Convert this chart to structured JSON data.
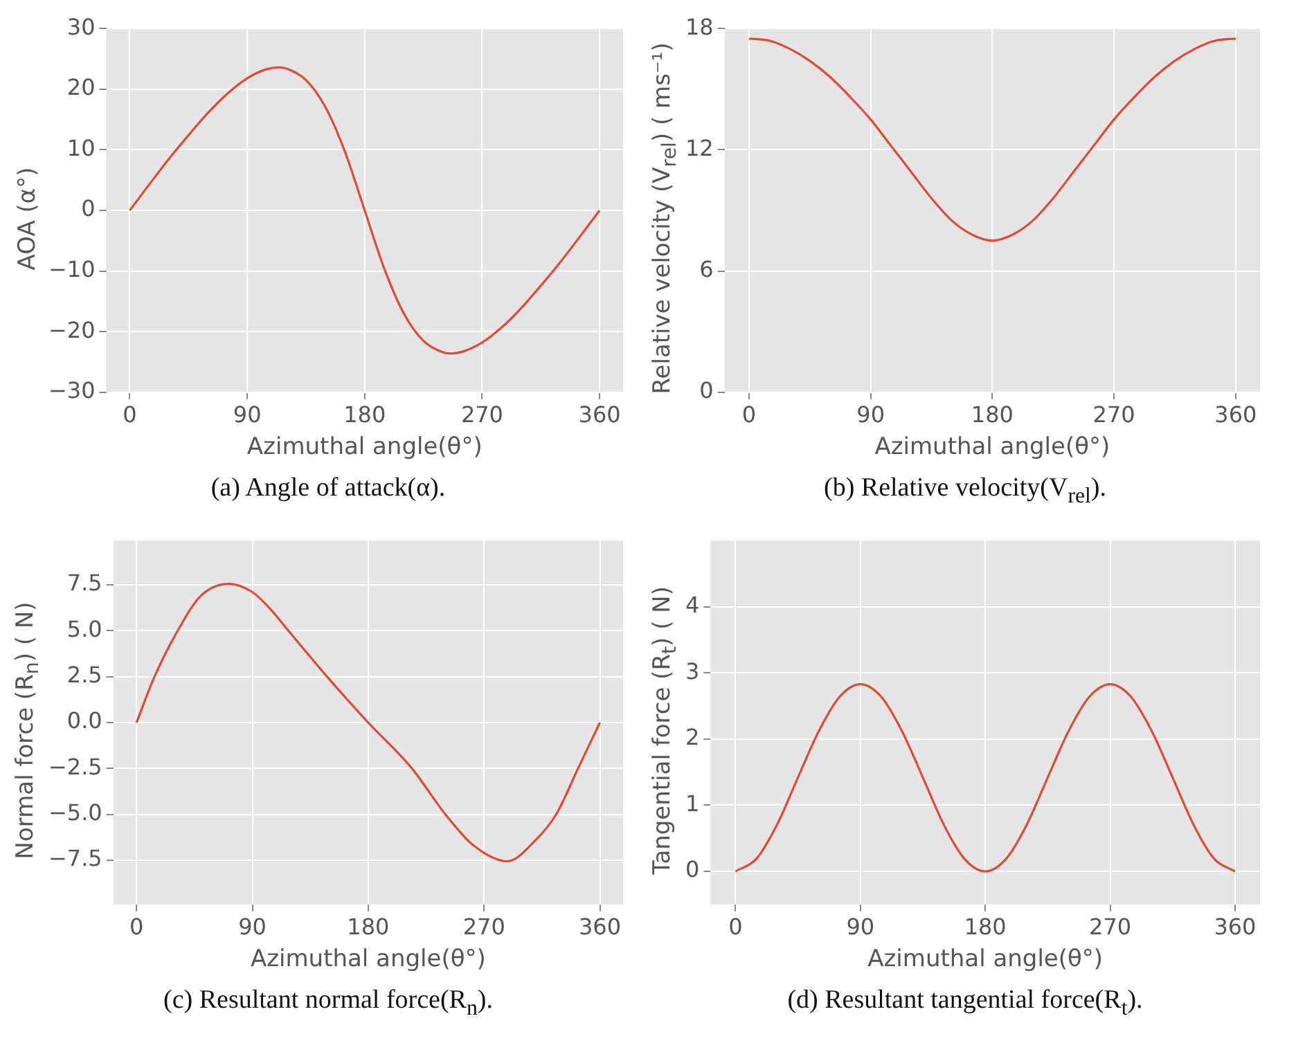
{
  "chart_data": [
    {
      "type": "line",
      "title": "(a) Angle of attack(α).",
      "xlabel": "Azimuthal angle(θ°)",
      "ylabel": "AOA (α°)",
      "xlim": [
        -18,
        378
      ],
      "xticks": [
        0,
        90,
        180,
        270,
        360
      ],
      "ylim": [
        -30,
        30
      ],
      "yticks": [
        -30,
        -20,
        -10,
        0,
        10,
        20,
        30
      ],
      "grid": true,
      "marker": "none",
      "line_style": "solid",
      "series": [
        {
          "color": "#e24a33",
          "x": [
            0,
            15,
            30,
            45,
            60,
            75,
            90,
            105,
            114,
            120,
            135,
            150,
            165,
            180,
            195,
            210,
            225,
            240,
            246,
            255,
            270,
            285,
            300,
            315,
            330,
            345,
            360
          ],
          "values": [
            0,
            4.3,
            8.5,
            12.4,
            16.1,
            19.3,
            21.8,
            23.3,
            23.6,
            23.4,
            21.5,
            17.0,
            9.6,
            0,
            -9.6,
            -17.0,
            -21.5,
            -23.4,
            -23.6,
            -23.3,
            -21.8,
            -19.3,
            -16.1,
            -12.4,
            -8.5,
            -4.3,
            0
          ]
        }
      ]
    },
    {
      "type": "line",
      "title": "(b) Relative velocity(V$_{rel}$).",
      "xlabel": "Azimuthal angle(θ°)",
      "ylabel": "Relative velocity (V$_{rel}$) ( ms⁻¹)",
      "xlim": [
        -18,
        378
      ],
      "xticks": [
        0,
        90,
        180,
        270,
        360
      ],
      "ylim": [
        0,
        18
      ],
      "yticks": [
        0,
        6,
        12,
        18
      ],
      "grid": true,
      "marker": "none",
      "line_style": "solid",
      "series": [
        {
          "color": "#e24a33",
          "x": [
            0,
            15,
            30,
            45,
            60,
            75,
            90,
            105,
            120,
            135,
            150,
            165,
            180,
            195,
            210,
            225,
            240,
            255,
            270,
            285,
            300,
            315,
            330,
            345,
            360
          ],
          "values": [
            17.5,
            17.4,
            17.0,
            16.4,
            15.6,
            14.6,
            13.5,
            12.2,
            10.9,
            9.6,
            8.5,
            7.8,
            7.5,
            7.8,
            8.5,
            9.6,
            10.9,
            12.2,
            13.5,
            14.6,
            15.6,
            16.4,
            17.0,
            17.4,
            17.5
          ]
        }
      ]
    },
    {
      "type": "line",
      "title": "(c) Resultant normal force(R$_{n}$).",
      "xlabel": "Azimuthal angle(θ°)",
      "ylabel": "Normal force (R$_{n}$) ( N)",
      "xlim": [
        -18,
        378
      ],
      "xticks": [
        0,
        90,
        180,
        270,
        360
      ],
      "ylim": [
        -9.9,
        9.9
      ],
      "yticks": [
        {
          "value": -7.5,
          "label": "−7.5"
        },
        {
          "value": -5,
          "label": "−5.0"
        },
        {
          "value": -2.5,
          "label": "−2.5"
        },
        {
          "value": 0,
          "label": "0.0"
        },
        {
          "value": 2.5,
          "label": "2.5"
        },
        {
          "value": 5,
          "label": "5.0"
        },
        {
          "value": 7.5,
          "label": "7.5"
        }
      ],
      "grid": true,
      "marker": "none",
      "line_style": "solid",
      "series": [
        {
          "color": "#e24a33",
          "x": [
            0,
            14,
            32,
            50,
            72,
            90,
            105,
            118,
            148,
            180,
            214,
            240,
            262,
            288,
            310,
            326,
            343,
            360
          ],
          "values": [
            0,
            2.5,
            5.0,
            6.9,
            7.55,
            7.1,
            6.1,
            5.0,
            2.5,
            0,
            -2.5,
            -5.0,
            -6.7,
            -7.55,
            -6.4,
            -5.0,
            -2.5,
            0
          ]
        }
      ]
    },
    {
      "type": "line",
      "title": "(d) Resultant tangential force(R$_{t}$).",
      "xlabel": "Azimuthal angle(θ°)",
      "ylabel": "Tangential force (R$_{t}$) ( N)",
      "xlim": [
        -18,
        378
      ],
      "xticks": [
        0,
        90,
        180,
        270,
        360
      ],
      "ylim": [
        -0.5,
        5
      ],
      "yticks": [
        0,
        1,
        2,
        3,
        4
      ],
      "grid": true,
      "marker": "none",
      "line_style": "solid",
      "series": [
        {
          "color": "#e24a33",
          "x": [
            0,
            15,
            30,
            45,
            60,
            75,
            90,
            105,
            120,
            135,
            150,
            165,
            180,
            195,
            210,
            225,
            240,
            255,
            270,
            285,
            300,
            315,
            330,
            345,
            360
          ],
          "values": [
            0,
            0.19,
            0.71,
            1.42,
            2.12,
            2.64,
            2.83,
            2.64,
            2.12,
            1.42,
            0.71,
            0.19,
            0,
            0.19,
            0.71,
            1.42,
            2.12,
            2.64,
            2.83,
            2.64,
            2.12,
            1.42,
            0.71,
            0.19,
            0
          ]
        }
      ]
    }
  ]
}
